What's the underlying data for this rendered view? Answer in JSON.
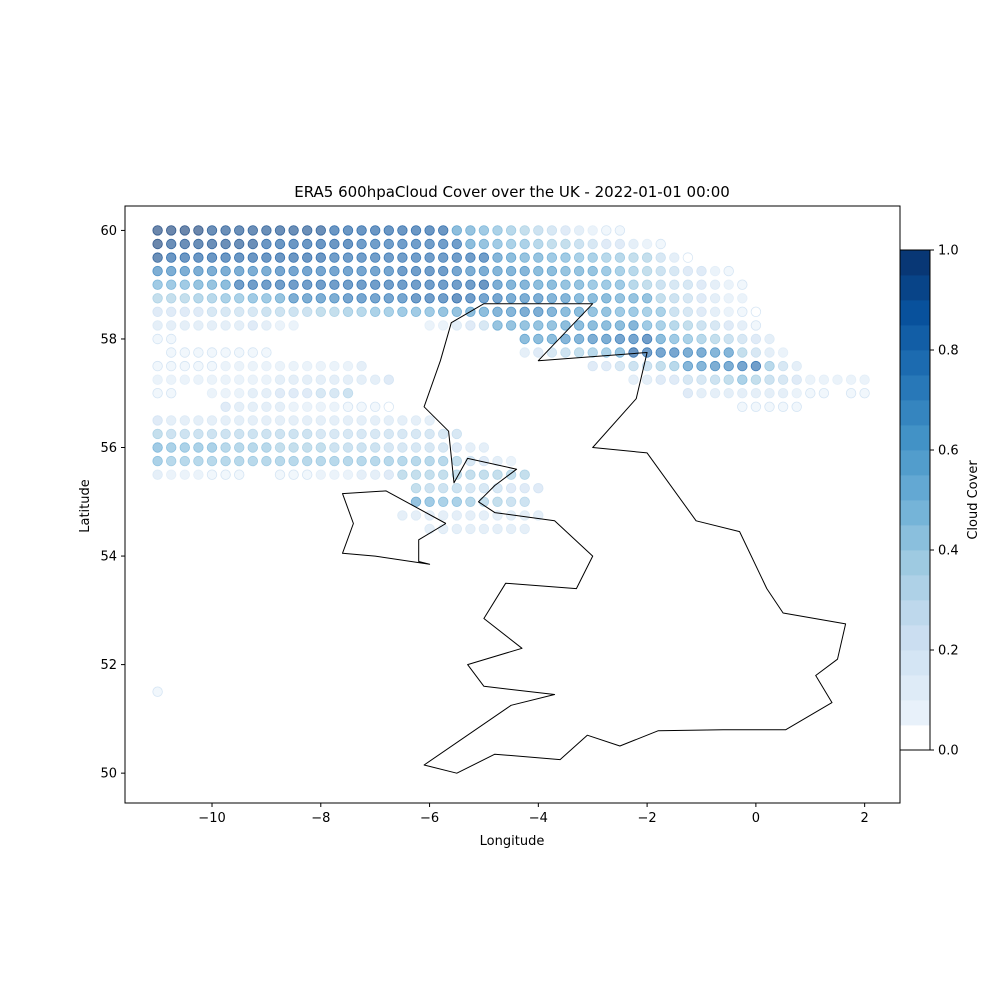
{
  "chart_data": {
    "type": "scatter",
    "title": "ERA5 600hpaCloud Cover over the UK - 2022-01-01 00:00",
    "xlabel": "Longitude",
    "ylabel": "Latitude",
    "xlim": [
      -11.6,
      2.65
    ],
    "ylim": [
      49.45,
      60.45
    ],
    "xticks": [
      -10,
      -8,
      -6,
      -4,
      -2,
      0,
      2
    ],
    "yticks": [
      50,
      52,
      54,
      56,
      58,
      60
    ],
    "xtick_labels": [
      "−10",
      "−8",
      "−6",
      "−4",
      "−2",
      "0",
      "2"
    ],
    "ytick_labels": [
      "50",
      "52",
      "54",
      "56",
      "58",
      "60"
    ],
    "grid": false,
    "colormap": "Blues",
    "point_alpha": 0.6,
    "grid_spacing_deg": 0.25,
    "colorbar": {
      "label": "Cloud Cover",
      "range": [
        0,
        1
      ],
      "levels": 20,
      "ticks": [
        0.0,
        0.2,
        0.4,
        0.6,
        0.8,
        1.0
      ],
      "tick_labels": [
        "0.0",
        "0.2",
        "0.4",
        "0.6",
        "0.8",
        "1.0"
      ]
    },
    "bands": [
      {
        "lat": 60.0,
        "lon0": -11.0,
        "lon1": -5.75,
        "v0": 0.97,
        "v1": 0.85
      },
      {
        "lat": 60.0,
        "lon0": -5.5,
        "lon1": -2.5,
        "v0": 0.6,
        "v1": 0.05
      },
      {
        "lat": 59.75,
        "lon0": -11.0,
        "lon1": -5.5,
        "v0": 0.95,
        "v1": 0.8
      },
      {
        "lat": 59.75,
        "lon0": -5.25,
        "lon1": -1.75,
        "v0": 0.6,
        "v1": 0.1
      },
      {
        "lat": 59.5,
        "lon0": -11.0,
        "lon1": -5.0,
        "v0": 0.9,
        "v1": 0.8
      },
      {
        "lat": 59.5,
        "lon0": -4.75,
        "lon1": -2.0,
        "v0": 0.65,
        "v1": 0.35
      },
      {
        "lat": 59.5,
        "lon0": -1.75,
        "lon1": -1.25,
        "v0": 0.25,
        "v1": 0.05
      },
      {
        "lat": 59.25,
        "lon0": -11.0,
        "lon1": -5.75,
        "v0": 0.7,
        "v1": 0.82
      },
      {
        "lat": 59.25,
        "lon0": -5.5,
        "lon1": -3.0,
        "v0": 0.75,
        "v1": 0.55
      },
      {
        "lat": 59.25,
        "lon0": -2.75,
        "lon1": -1.0,
        "v0": 0.5,
        "v1": 0.2
      },
      {
        "lat": 59.25,
        "lon0": -0.75,
        "lon1": -0.5,
        "v0": 0.1,
        "v1": 0.05
      },
      {
        "lat": 59.0,
        "lon0": -11.0,
        "lon1": -9.75,
        "v0": 0.5,
        "v1": 0.6
      },
      {
        "lat": 59.0,
        "lon0": -9.5,
        "lon1": -5.0,
        "v0": 0.8,
        "v1": 0.85
      },
      {
        "lat": 59.0,
        "lon0": -4.75,
        "lon1": -2.5,
        "v0": 0.7,
        "v1": 0.5
      },
      {
        "lat": 59.0,
        "lon0": -2.25,
        "lon1": -0.25,
        "v0": 0.4,
        "v1": 0.1
      },
      {
        "lat": 58.75,
        "lon0": -11.0,
        "lon1": -8.75,
        "v0": 0.35,
        "v1": 0.55
      },
      {
        "lat": 58.75,
        "lon0": -8.5,
        "lon1": -5.5,
        "v0": 0.7,
        "v1": 0.85
      },
      {
        "lat": 58.75,
        "lon0": -5.25,
        "lon1": -2.0,
        "v0": 0.8,
        "v1": 0.55
      },
      {
        "lat": 58.75,
        "lon0": -1.75,
        "lon1": -0.25,
        "v0": 0.35,
        "v1": 0.1
      },
      {
        "lat": 58.5,
        "lon0": -11.0,
        "lon1": -9.0,
        "v0": 0.2,
        "v1": 0.3
      },
      {
        "lat": 58.5,
        "lon0": -8.75,
        "lon1": -4.25,
        "v0": 0.3,
        "v1": 0.7
      },
      {
        "lat": 58.5,
        "lon0": -4.0,
        "lon1": -1.75,
        "v0": 0.7,
        "v1": 0.45
      },
      {
        "lat": 58.5,
        "lon0": -1.5,
        "lon1": 0.0,
        "v0": 0.3,
        "v1": 0.05
      },
      {
        "lat": 58.25,
        "lon0": -11.0,
        "lon1": -9.25,
        "v0": 0.15,
        "v1": 0.2
      },
      {
        "lat": 58.25,
        "lon0": -9.0,
        "lon1": -8.5,
        "v0": 0.15,
        "v1": 0.1
      },
      {
        "lat": 58.25,
        "lon0": -6.0,
        "lon1": -5.0,
        "v0": 0.1,
        "v1": 0.25
      },
      {
        "lat": 58.25,
        "lon0": -4.75,
        "lon1": -2.25,
        "v0": 0.55,
        "v1": 0.65
      },
      {
        "lat": 58.25,
        "lon0": -2.0,
        "lon1": -0.25,
        "v0": 0.5,
        "v1": 0.15
      },
      {
        "lat": 58.25,
        "lon0": 0.0,
        "lon1": 0.0,
        "v0": 0.05,
        "v1": 0.05
      },
      {
        "lat": 58.0,
        "lon0": -11.0,
        "lon1": -10.75,
        "v0": 0.05,
        "v1": 0.05
      },
      {
        "lat": 58.0,
        "lon0": -4.25,
        "lon1": -2.0,
        "v0": 0.6,
        "v1": 0.8
      },
      {
        "lat": 58.0,
        "lon0": -1.75,
        "lon1": 0.25,
        "v0": 0.6,
        "v1": 0.15
      },
      {
        "lat": 57.75,
        "lon0": -10.75,
        "lon1": -9.0,
        "v0": 0.05,
        "v1": 0.05
      },
      {
        "lat": 57.75,
        "lon0": -4.25,
        "lon1": -2.5,
        "v0": 0.15,
        "v1": 0.55
      },
      {
        "lat": 57.75,
        "lon0": -2.25,
        "lon1": -0.5,
        "v0": 0.85,
        "v1": 0.65
      },
      {
        "lat": 57.75,
        "lon0": -0.25,
        "lon1": 0.5,
        "v0": 0.35,
        "v1": 0.1
      },
      {
        "lat": 57.5,
        "lon0": -11.0,
        "lon1": -7.25,
        "v0": 0.08,
        "v1": 0.15
      },
      {
        "lat": 57.5,
        "lon0": -3.0,
        "lon1": -1.5,
        "v0": 0.2,
        "v1": 0.4
      },
      {
        "lat": 57.5,
        "lon0": -1.25,
        "lon1": 0.0,
        "v0": 0.65,
        "v1": 0.8
      },
      {
        "lat": 57.5,
        "lon0": 0.25,
        "lon1": 0.75,
        "v0": 0.4,
        "v1": 0.15
      },
      {
        "lat": 57.25,
        "lon0": -11.0,
        "lon1": -6.75,
        "v0": 0.1,
        "v1": 0.2
      },
      {
        "lat": 57.25,
        "lon0": -2.25,
        "lon1": -0.5,
        "v0": 0.15,
        "v1": 0.35
      },
      {
        "lat": 57.25,
        "lon0": -0.25,
        "lon1": 1.0,
        "v0": 0.45,
        "v1": 0.15
      },
      {
        "lat": 57.25,
        "lon0": 1.25,
        "lon1": 2.0,
        "v0": 0.1,
        "v1": 0.1
      },
      {
        "lat": 57.0,
        "lon0": -11.0,
        "lon1": -10.75,
        "v0": 0.05,
        "v1": 0.05
      },
      {
        "lat": 57.0,
        "lon0": -10.0,
        "lon1": -7.5,
        "v0": 0.1,
        "v1": 0.3
      },
      {
        "lat": 57.0,
        "lon0": -1.25,
        "lon1": 0.5,
        "v0": 0.2,
        "v1": 0.15
      },
      {
        "lat": 57.0,
        "lon0": 0.75,
        "lon1": 1.25,
        "v0": 0.1,
        "v1": 0.05
      },
      {
        "lat": 57.0,
        "lon0": 1.75,
        "lon1": 2.0,
        "v0": 0.05,
        "v1": 0.05
      },
      {
        "lat": 56.75,
        "lon0": -9.75,
        "lon1": -6.75,
        "v0": 0.2,
        "v1": 0.05
      },
      {
        "lat": 56.75,
        "lon0": -0.25,
        "lon1": 0.75,
        "v0": 0.05,
        "v1": 0.05
      },
      {
        "lat": 56.5,
        "lon0": -11.0,
        "lon1": -6.0,
        "v0": 0.2,
        "v1": 0.15
      },
      {
        "lat": 56.25,
        "lon0": -11.0,
        "lon1": -5.5,
        "v0": 0.35,
        "v1": 0.25
      },
      {
        "lat": 56.0,
        "lon0": -11.0,
        "lon1": -5.75,
        "v0": 0.5,
        "v1": 0.25
      },
      {
        "lat": 56.0,
        "lon0": -5.5,
        "lon1": -5.0,
        "v0": 0.2,
        "v1": 0.15
      },
      {
        "lat": 55.75,
        "lon0": -11.0,
        "lon1": -5.75,
        "v0": 0.45,
        "v1": 0.4
      },
      {
        "lat": 55.75,
        "lon0": -5.5,
        "lon1": -4.5,
        "v0": 0.35,
        "v1": 0.1
      },
      {
        "lat": 55.5,
        "lon0": -11.0,
        "lon1": -9.5,
        "v0": 0.15,
        "v1": 0.05
      },
      {
        "lat": 55.5,
        "lon0": -8.75,
        "lon1": -6.75,
        "v0": 0.05,
        "v1": 0.2
      },
      {
        "lat": 55.5,
        "lon0": -6.5,
        "lon1": -4.25,
        "v0": 0.35,
        "v1": 0.35
      },
      {
        "lat": 55.25,
        "lon0": -6.25,
        "lon1": -4.0,
        "v0": 0.35,
        "v1": 0.2
      },
      {
        "lat": 55.0,
        "lon0": -6.25,
        "lon1": -4.25,
        "v0": 0.55,
        "v1": 0.3
      },
      {
        "lat": 54.75,
        "lon0": -6.5,
        "lon1": -4.0,
        "v0": 0.15,
        "v1": 0.15
      },
      {
        "lat": 54.5,
        "lon0": -6.0,
        "lon1": -4.25,
        "v0": 0.15,
        "v1": 0.15
      }
    ],
    "points": [
      {
        "lon": -11.0,
        "lat": 51.5,
        "v": 0.05
      }
    ],
    "coastlines": [
      [
        [
          -5.0,
          58.65
        ],
        [
          -3.0,
          58.65
        ],
        [
          -4.0,
          57.6
        ],
        [
          -2.0,
          57.75
        ],
        [
          -2.2,
          56.9
        ],
        [
          -3.0,
          56.0
        ],
        [
          -2.0,
          55.9
        ],
        [
          -1.1,
          54.65
        ],
        [
          -0.3,
          54.45
        ],
        [
          0.2,
          53.4
        ],
        [
          0.5,
          52.95
        ],
        [
          1.65,
          52.75
        ],
        [
          1.5,
          52.1
        ],
        [
          1.1,
          51.8
        ],
        [
          1.4,
          51.3
        ],
        [
          0.55,
          50.8
        ],
        [
          -0.6,
          50.8
        ],
        [
          -1.8,
          50.78
        ],
        [
          -2.5,
          50.5
        ],
        [
          -3.1,
          50.7
        ],
        [
          -3.6,
          50.25
        ],
        [
          -4.8,
          50.35
        ],
        [
          -5.5,
          50.0
        ],
        [
          -6.1,
          50.15
        ],
        [
          -4.5,
          51.25
        ],
        [
          -3.7,
          51.45
        ],
        [
          -5.0,
          51.6
        ],
        [
          -5.3,
          52.0
        ],
        [
          -4.3,
          52.3
        ],
        [
          -5.0,
          52.85
        ],
        [
          -4.6,
          53.5
        ],
        [
          -3.3,
          53.4
        ],
        [
          -3.0,
          54.0
        ],
        [
          -3.7,
          54.65
        ],
        [
          -4.8,
          54.8
        ],
        [
          -5.1,
          55.0
        ],
        [
          -4.8,
          55.3
        ],
        [
          -4.4,
          55.6
        ],
        [
          -5.3,
          55.8
        ],
        [
          -5.55,
          55.35
        ],
        [
          -5.65,
          56.3
        ],
        [
          -6.1,
          56.75
        ],
        [
          -5.8,
          57.6
        ],
        [
          -5.6,
          58.3
        ],
        [
          -5.0,
          58.65
        ]
      ],
      [
        [
          -5.7,
          54.6
        ],
        [
          -6.2,
          54.3
        ],
        [
          -6.2,
          53.9
        ],
        [
          -6.0,
          53.85
        ],
        [
          -7.0,
          54.0
        ],
        [
          -7.6,
          54.05
        ],
        [
          -7.4,
          54.6
        ],
        [
          -7.6,
          55.15
        ],
        [
          -6.8,
          55.2
        ],
        [
          -5.7,
          54.6
        ]
      ]
    ]
  }
}
